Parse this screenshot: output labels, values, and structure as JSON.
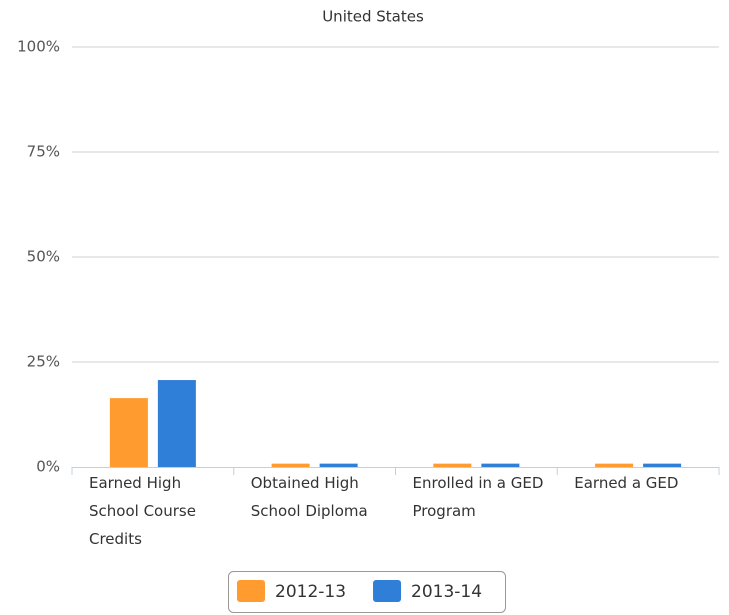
{
  "chart_data": {
    "type": "bar",
    "title": "United States",
    "categories": [
      "Earned High School Course Credits",
      "Obtained High School Diploma",
      "Enrolled in a GED Program",
      "Earned a GED"
    ],
    "series": [
      {
        "name": "2012-13",
        "color": "#ff9b2f",
        "values": [
          16.4,
          0.8,
          0.8,
          0.8
        ]
      },
      {
        "name": "2013-14",
        "color": "#2f7ed8",
        "values": [
          20.7,
          0.8,
          0.8,
          0.8
        ]
      }
    ],
    "ylim": [
      0,
      100
    ],
    "yticks": [
      {
        "value": 0,
        "label": "0%"
      },
      {
        "value": 25,
        "label": "25%"
      },
      {
        "value": 50,
        "label": "50%"
      },
      {
        "value": 75,
        "label": "75%"
      },
      {
        "value": 100,
        "label": "100%"
      }
    ],
    "grid": true,
    "legend": "bottom"
  }
}
